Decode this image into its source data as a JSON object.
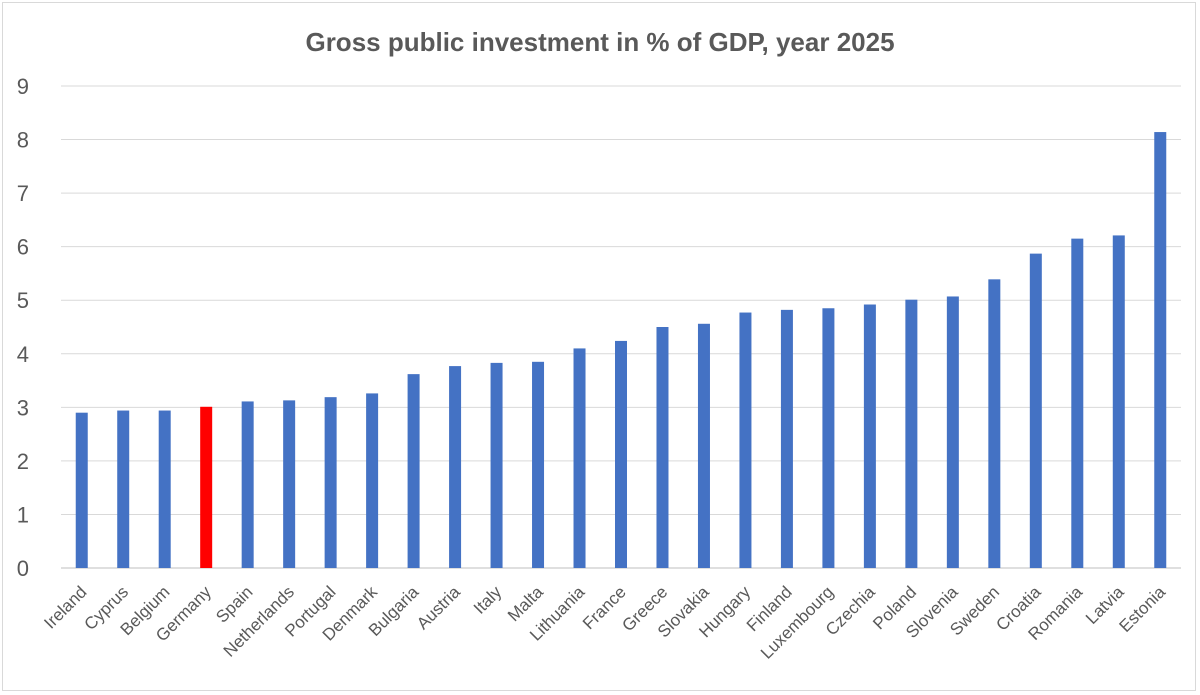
{
  "chart_data": {
    "type": "bar",
    "title": "Gross public investment in % of GDP, year 2025",
    "xlabel": "",
    "ylabel": "",
    "ylim": [
      0,
      9
    ],
    "yticks": [
      0,
      1,
      2,
      3,
      4,
      5,
      6,
      7,
      8,
      9
    ],
    "grid": true,
    "legend": "none",
    "bar_color": "#4472c4",
    "highlight_color": "#ff0000",
    "highlight_category": "Germany",
    "categories": [
      "Ireland",
      "Cyprus",
      "Belgium",
      "Germany",
      "Spain",
      "Netherlands",
      "Portugal",
      "Denmark",
      "Bulgaria",
      "Austria",
      "Italy",
      "Malta",
      "Lithuania",
      "France",
      "Greece",
      "Slovakia",
      "Hungary",
      "Finland",
      "Luxembourg",
      "Czechia",
      "Poland",
      "Slovenia",
      "Sweden",
      "Croatia",
      "Romania",
      "Latvia",
      "Estonia"
    ],
    "values": [
      2.9,
      2.94,
      2.94,
      3.01,
      3.11,
      3.13,
      3.19,
      3.26,
      3.62,
      3.77,
      3.83,
      3.85,
      4.1,
      4.24,
      4.5,
      4.56,
      4.77,
      4.82,
      4.85,
      4.92,
      5.01,
      5.07,
      5.39,
      5.87,
      6.15,
      6.21,
      8.14
    ]
  }
}
